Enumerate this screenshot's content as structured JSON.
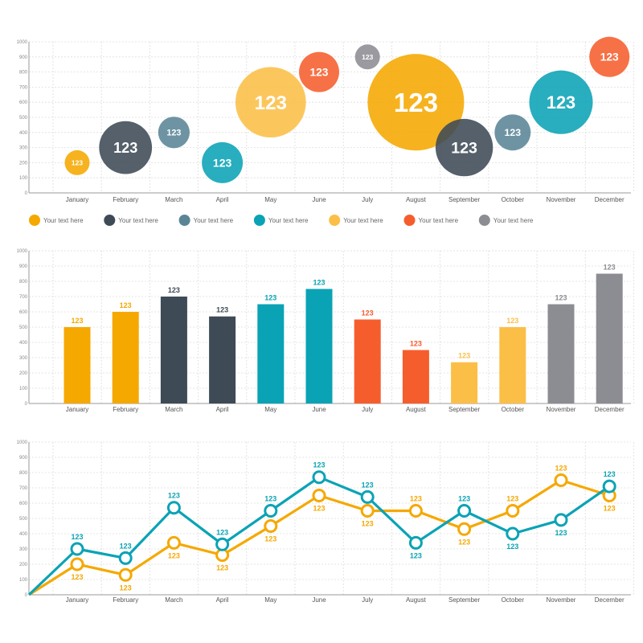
{
  "colors": {
    "orange": "#f5a800",
    "dark_slate": "#3e4a56",
    "slate_blue": "#5a8596",
    "teal": "#0aa3b5",
    "light_orange": "#fbbf47",
    "red_orange": "#f65d2c",
    "gray": "#8c8c93"
  },
  "chart_data": [
    {
      "type": "bubble",
      "categories": [
        "January",
        "February",
        "March",
        "April",
        "May",
        "June",
        "July",
        "August",
        "September",
        "October",
        "November",
        "December"
      ],
      "y_ticks": [
        "0",
        "100",
        "200",
        "300",
        "400",
        "500",
        "600",
        "700",
        "800",
        "900",
        "1000"
      ],
      "ylim": [
        0,
        1000
      ],
      "grid": true,
      "points": [
        {
          "category": "January",
          "y": 200,
          "size": 1,
          "label": "123",
          "color": "orange"
        },
        {
          "category": "February",
          "y": 300,
          "size": 4.5,
          "label": "123",
          "color": "dark_slate"
        },
        {
          "category": "March",
          "y": 400,
          "size": 1.6,
          "label": "123",
          "color": "slate_blue"
        },
        {
          "category": "April",
          "y": 200,
          "size": 2.7,
          "label": "123",
          "color": "teal"
        },
        {
          "category": "May",
          "y": 600,
          "size": 8,
          "label": "123",
          "color": "light_orange"
        },
        {
          "category": "June",
          "y": 800,
          "size": 2.6,
          "label": "123",
          "color": "red_orange"
        },
        {
          "category": "July",
          "y": 900,
          "size": 1,
          "label": "123",
          "color": "gray"
        },
        {
          "category": "August",
          "y": 600,
          "size": 15,
          "label": "123",
          "color": "orange"
        },
        {
          "category": "September",
          "y": 300,
          "size": 5.3,
          "label": "123",
          "color": "dark_slate"
        },
        {
          "category": "October",
          "y": 400,
          "size": 2.1,
          "label": "123",
          "color": "slate_blue"
        },
        {
          "category": "November",
          "y": 600,
          "size": 6.5,
          "label": "123",
          "color": "teal"
        },
        {
          "category": "December",
          "y": 900,
          "size": 2.6,
          "label": "123",
          "color": "red_orange"
        }
      ],
      "legend": [
        {
          "label": "Your text here",
          "color": "orange"
        },
        {
          "label": "Your text here",
          "color": "dark_slate"
        },
        {
          "label": "Your text here",
          "color": "slate_blue"
        },
        {
          "label": "Your text here",
          "color": "teal"
        },
        {
          "label": "Your text here",
          "color": "light_orange"
        },
        {
          "label": "Your text here",
          "color": "red_orange"
        },
        {
          "label": "Your text here",
          "color": "gray"
        }
      ],
      "legend_position": "bottom"
    },
    {
      "type": "bar",
      "categories": [
        "January",
        "February",
        "March",
        "April",
        "May",
        "June",
        "July",
        "August",
        "September",
        "October",
        "November",
        "December"
      ],
      "y_ticks": [
        "0",
        "100",
        "200",
        "300",
        "400",
        "500",
        "600",
        "700",
        "800",
        "900",
        "1000"
      ],
      "ylim": [
        0,
        1000
      ],
      "grid": true,
      "values": [
        500,
        600,
        700,
        570,
        650,
        750,
        550,
        350,
        270,
        500,
        650,
        850
      ],
      "labels": [
        "123",
        "123",
        "123",
        "123",
        "123",
        "123",
        "123",
        "123",
        "123",
        "123",
        "123",
        "123"
      ],
      "bar_colors": [
        "orange",
        "orange",
        "dark_slate",
        "dark_slate",
        "teal",
        "teal",
        "red_orange",
        "red_orange",
        "light_orange",
        "light_orange",
        "gray",
        "gray"
      ]
    },
    {
      "type": "line",
      "categories": [
        "January",
        "February",
        "March",
        "April",
        "May",
        "June",
        "July",
        "August",
        "September",
        "October",
        "November",
        "December"
      ],
      "y_ticks": [
        "0",
        "100",
        "200",
        "300",
        "400",
        "500",
        "600",
        "700",
        "800",
        "900",
        "1000"
      ],
      "ylim": [
        0,
        1000
      ],
      "grid": true,
      "origin": 0,
      "series": [
        {
          "color": "teal",
          "values": [
            300,
            240,
            570,
            330,
            550,
            770,
            640,
            340,
            550,
            400,
            490,
            710
          ],
          "labels": [
            "123",
            "123",
            "123",
            "123",
            "123",
            "123",
            "123",
            "123",
            "123",
            "123",
            "123",
            "123"
          ],
          "label_positions": [
            "above",
            "above",
            "above",
            "above",
            "above",
            "above",
            "above",
            "below",
            "above",
            "below",
            "below",
            "above"
          ]
        },
        {
          "color": "orange",
          "values": [
            200,
            130,
            340,
            260,
            450,
            650,
            550,
            550,
            430,
            550,
            750,
            650
          ],
          "labels": [
            "123",
            "123",
            "123",
            "123",
            "123",
            "123",
            "123",
            "123",
            "123",
            "123",
            "123",
            "123"
          ],
          "label_positions": [
            "below",
            "below",
            "below",
            "below",
            "below",
            "below",
            "below",
            "above",
            "below",
            "above",
            "above",
            "below"
          ]
        }
      ]
    }
  ]
}
